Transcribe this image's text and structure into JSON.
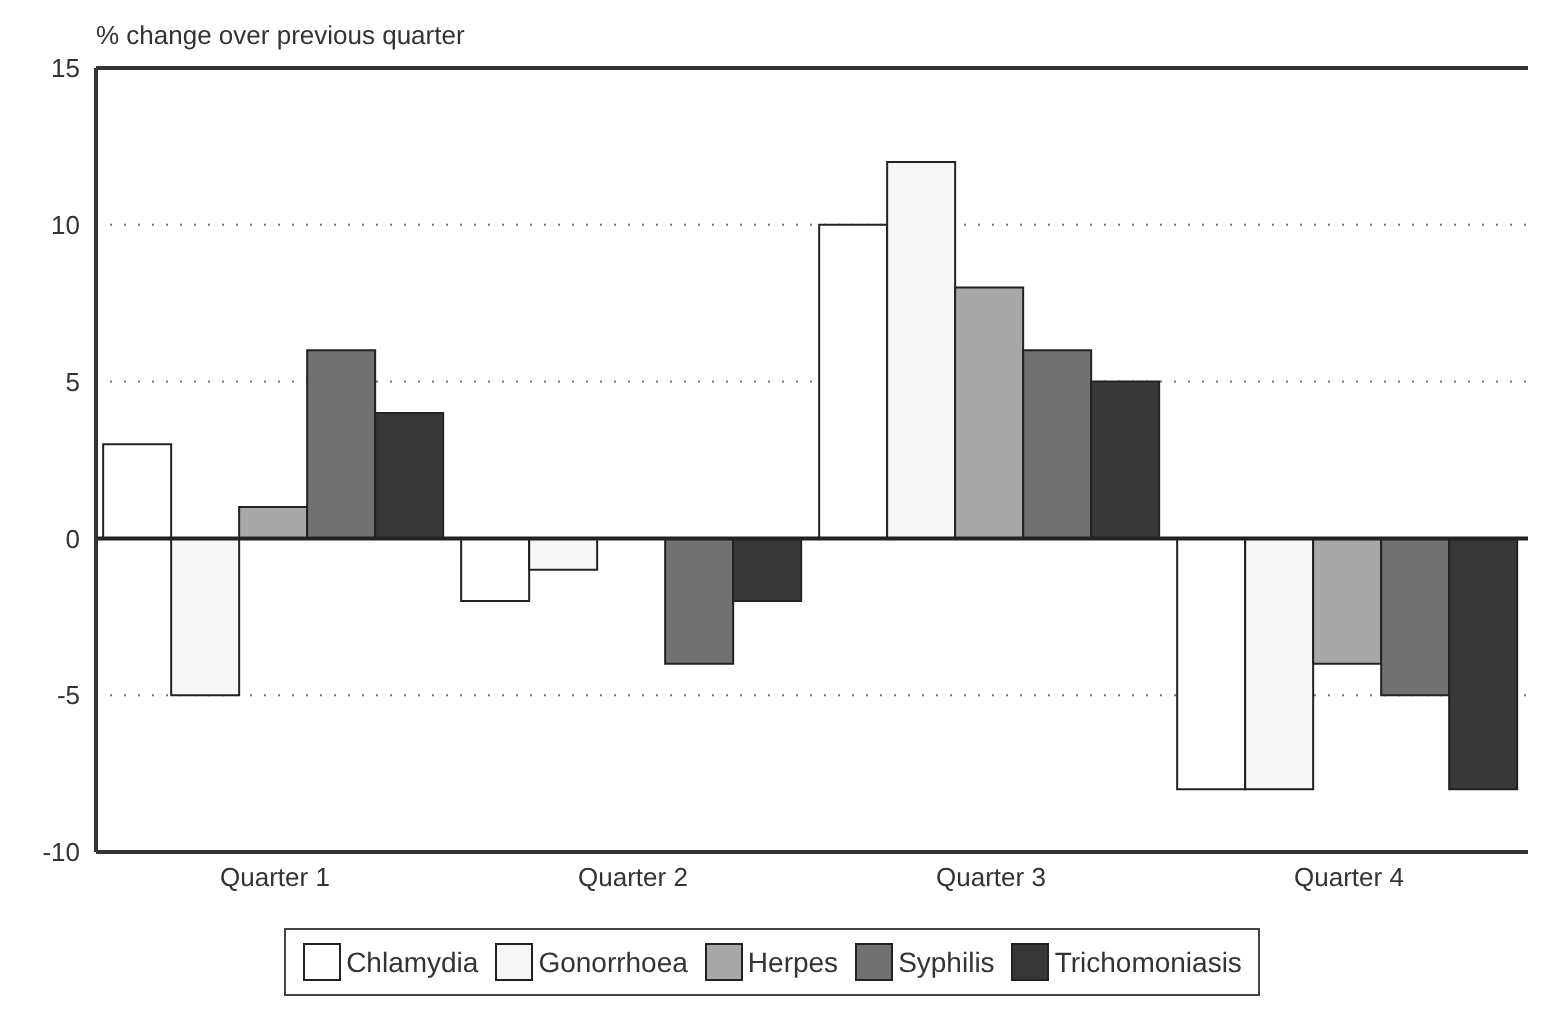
{
  "chart_data": {
    "type": "bar",
    "ylabel": "% change over previous quarter",
    "categories": [
      "Quarter 1",
      "Quarter 2",
      "Quarter 3",
      "Quarter 4"
    ],
    "series": [
      {
        "name": "Chlamydia",
        "color": "#ffffff",
        "values": [
          3,
          -2,
          10,
          -8
        ]
      },
      {
        "name": "Gonorrhoea",
        "color": "#f6f6f6",
        "values": [
          -5,
          -1,
          12,
          -8
        ]
      },
      {
        "name": "Herpes",
        "color": "#a8a8a8",
        "values": [
          1,
          0,
          8,
          -4
        ]
      },
      {
        "name": "Syphilis",
        "color": "#717171",
        "values": [
          6,
          -4,
          6,
          -5
        ]
      },
      {
        "name": "Trichomoniasis",
        "color": "#383838",
        "values": [
          4,
          -2,
          5,
          -8
        ]
      }
    ],
    "ylim": [
      -10,
      15
    ],
    "yticks": [
      -10,
      -5,
      0,
      5,
      10,
      15
    ],
    "grid": "y",
    "legend": "bottom",
    "ref_lines": [
      {
        "axis": "y",
        "value": 0
      }
    ]
  }
}
